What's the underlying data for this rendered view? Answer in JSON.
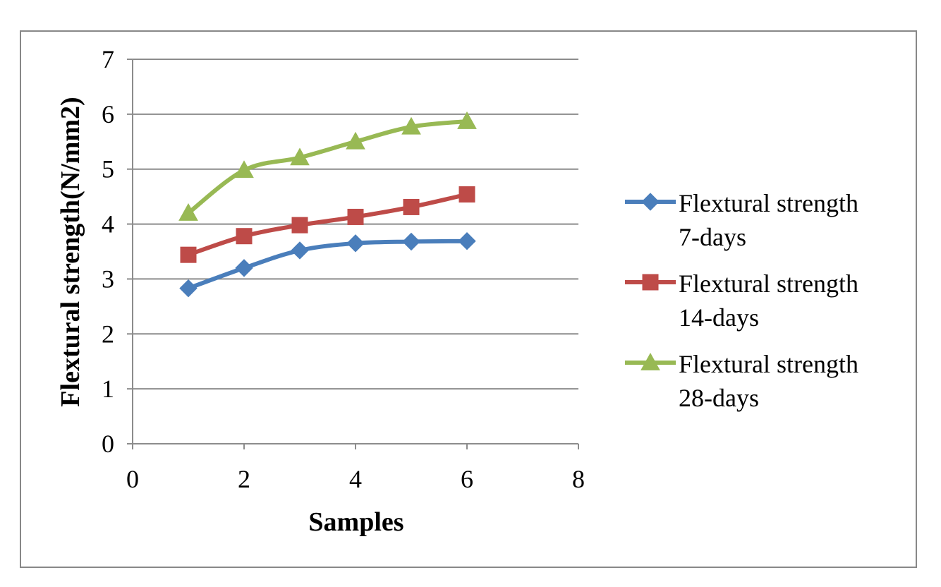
{
  "chart_data": {
    "type": "line",
    "title": "",
    "xlabel": "Samples",
    "ylabel": "Flextural strength(N/mm2)",
    "xlim": [
      0,
      8
    ],
    "ylim": [
      0,
      7
    ],
    "x_ticks": [
      0,
      2,
      4,
      6,
      8
    ],
    "y_ticks": [
      0,
      1,
      2,
      3,
      4,
      5,
      6,
      7
    ],
    "grid": "horizontal",
    "legend_position": "right",
    "series": [
      {
        "name": "Flextural strength 7-days",
        "name_lines": [
          "Flextural strength",
          "7-days"
        ],
        "color": "#4a7ebb",
        "marker": "diamond",
        "x": [
          1,
          2,
          3,
          4,
          5,
          6
        ],
        "y": [
          2.83,
          3.2,
          3.52,
          3.65,
          3.68,
          3.69
        ]
      },
      {
        "name": "Flextural strength 14-days",
        "name_lines": [
          "Flextural strength",
          "14-days"
        ],
        "color": "#be4b48",
        "marker": "square",
        "x": [
          1,
          2,
          3,
          4,
          5,
          6
        ],
        "y": [
          3.44,
          3.78,
          3.98,
          4.13,
          4.31,
          4.54
        ]
      },
      {
        "name": "Flextural strength 28-days",
        "name_lines": [
          "Flextural strength",
          "28-days"
        ],
        "color": "#98b954",
        "marker": "triangle",
        "x": [
          1,
          2,
          3,
          4,
          5,
          6
        ],
        "y": [
          4.2,
          4.98,
          5.21,
          5.5,
          5.77,
          5.87
        ]
      }
    ]
  }
}
